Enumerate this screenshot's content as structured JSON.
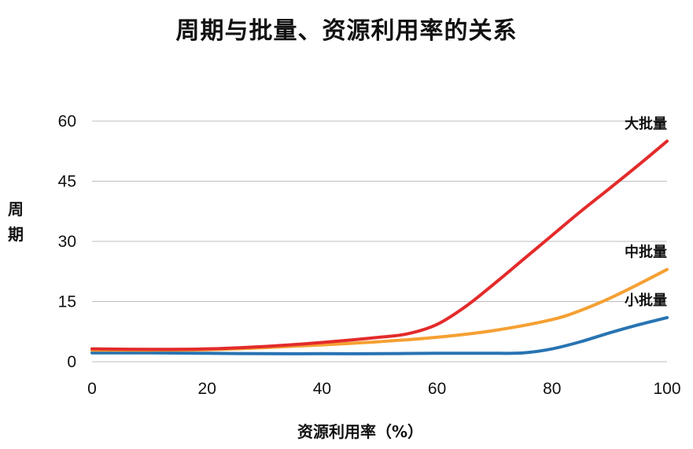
{
  "chart_data": {
    "type": "line",
    "title": "周期与批量、资源利用率的关系",
    "xlabel": "资源利用率（%）",
    "ylabel": "周期",
    "xlim": [
      0,
      100
    ],
    "ylim": [
      0,
      60
    ],
    "x_ticks": [
      0,
      20,
      40,
      60,
      80,
      100
    ],
    "y_ticks": [
      0,
      15,
      30,
      45,
      60
    ],
    "grid": true,
    "legend": "inline labels at line ends",
    "series": [
      {
        "name": "大批量",
        "color": "#e32b2b",
        "points": [
          [
            0,
            3.2
          ],
          [
            10,
            3.1
          ],
          [
            20,
            3.2
          ],
          [
            30,
            3.8
          ],
          [
            40,
            4.8
          ],
          [
            50,
            6.1
          ],
          [
            55,
            7.0
          ],
          [
            60,
            9.3
          ],
          [
            65,
            13.8
          ],
          [
            70,
            19.5
          ],
          [
            75,
            25.5
          ],
          [
            80,
            31.5
          ],
          [
            85,
            37.5
          ],
          [
            90,
            43.2
          ],
          [
            95,
            49.0
          ],
          [
            100,
            55.0
          ]
        ]
      },
      {
        "name": "中批量",
        "color": "#f5a033",
        "points": [
          [
            0,
            2.9
          ],
          [
            10,
            2.9
          ],
          [
            20,
            3.0
          ],
          [
            30,
            3.5
          ],
          [
            40,
            4.2
          ],
          [
            50,
            5.0
          ],
          [
            60,
            6.1
          ],
          [
            70,
            7.8
          ],
          [
            80,
            10.5
          ],
          [
            85,
            12.8
          ],
          [
            90,
            15.8
          ],
          [
            95,
            19.3
          ],
          [
            100,
            23.0
          ]
        ]
      },
      {
        "name": "小批量",
        "color": "#2874b2",
        "points": [
          [
            0,
            2.2
          ],
          [
            10,
            2.2
          ],
          [
            20,
            2.1
          ],
          [
            30,
            2.0
          ],
          [
            40,
            2.0
          ],
          [
            50,
            2.0
          ],
          [
            60,
            2.1
          ],
          [
            70,
            2.1
          ],
          [
            75,
            2.2
          ],
          [
            80,
            3.2
          ],
          [
            85,
            5.0
          ],
          [
            90,
            7.2
          ],
          [
            95,
            9.2
          ],
          [
            100,
            11.0
          ]
        ]
      }
    ]
  }
}
